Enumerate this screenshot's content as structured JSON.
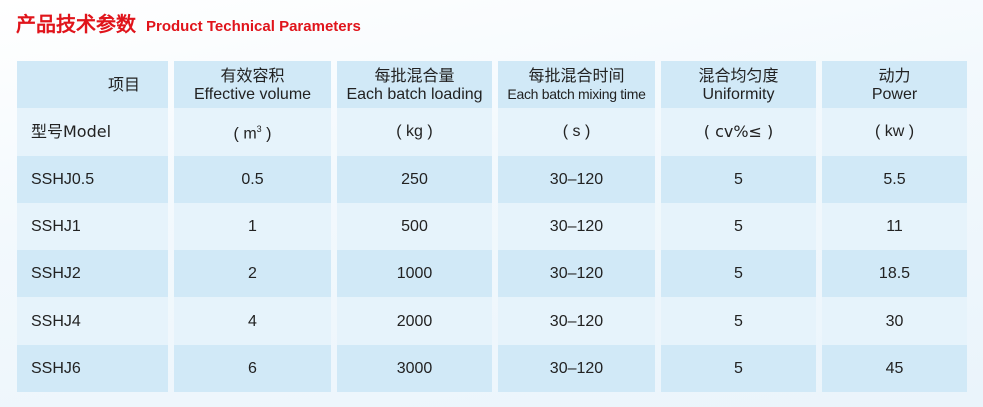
{
  "title": {
    "cn": "产品技术参数",
    "en": "Product Technical Parameters"
  },
  "header": [
    {
      "cn": "项目",
      "en": ""
    },
    {
      "cn": "有效容积",
      "en": "Effective volume"
    },
    {
      "cn": "每批混合量",
      "en": "Each batch loading"
    },
    {
      "cn": "每批混合时间",
      "en": "Each batch mixing time"
    },
    {
      "cn": "混合均匀度",
      "en": "Uniformity"
    },
    {
      "cn": "动力",
      "en": "Power"
    }
  ],
  "units": {
    "model": "型号Model",
    "volume_pre": "( m",
    "volume_sup": "3",
    "volume_post": " )",
    "loading": "( kg )",
    "time": "( s )",
    "uniformity": "( cv%≤ )",
    "power": "( kw )"
  },
  "rows": [
    {
      "model": "SSHJ0.5",
      "volume": "0.5",
      "loading": "250",
      "time": "30–120",
      "uniformity": "5",
      "power": "5.5"
    },
    {
      "model": "SSHJ1",
      "volume": "1",
      "loading": "500",
      "time": "30–120",
      "uniformity": "5",
      "power": "11"
    },
    {
      "model": "SSHJ2",
      "volume": "2",
      "loading": "1000",
      "time": "30–120",
      "uniformity": "5",
      "power": "18.5"
    },
    {
      "model": "SSHJ4",
      "volume": "4",
      "loading": "2000",
      "time": "30–120",
      "uniformity": "5",
      "power": "30"
    },
    {
      "model": "SSHJ6",
      "volume": "6",
      "loading": "3000",
      "time": "30–120",
      "uniformity": "5",
      "power": "45"
    }
  ],
  "colors": {
    "title": "#e0141b",
    "row_dark": "#d1e9f7",
    "row_light": "#e6f3fb"
  }
}
